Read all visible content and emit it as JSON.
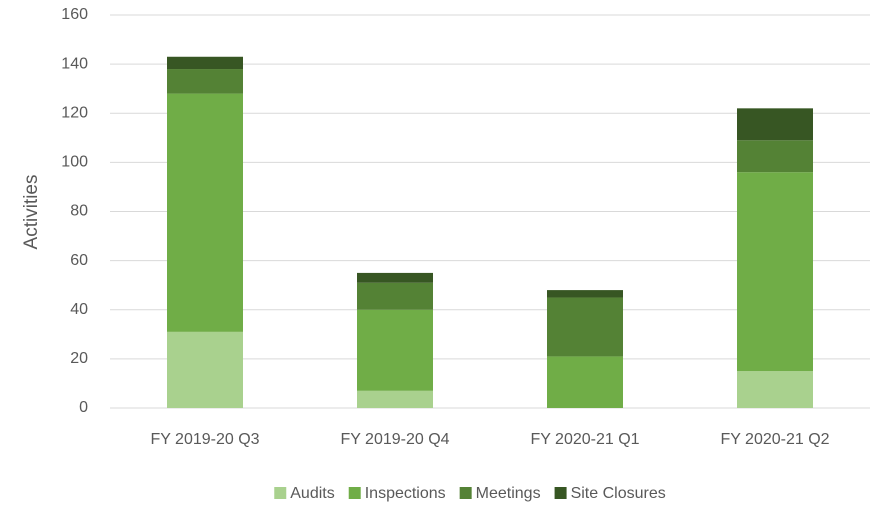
{
  "chart_data": {
    "type": "stacked-bar",
    "y_label": "Activities",
    "categories": [
      "FY 2019-20 Q3",
      "FY 2019-20 Q4",
      "FY 2020-21 Q1",
      "FY 2020-21 Q2"
    ],
    "series": [
      {
        "name": "Audits",
        "color": "#a9d18e",
        "values": [
          31,
          7,
          0,
          15
        ]
      },
      {
        "name": "Inspections",
        "color": "#70ad47",
        "values": [
          97,
          33,
          21,
          81
        ]
      },
      {
        "name": "Meetings",
        "color": "#548235",
        "values": [
          10,
          11,
          24,
          13
        ]
      },
      {
        "name": "Site Closures",
        "color": "#375623",
        "values": [
          5,
          4,
          3,
          13
        ]
      }
    ],
    "ylim": [
      0,
      160
    ],
    "yticks": [
      0,
      20,
      40,
      60,
      80,
      100,
      120,
      140,
      160
    ],
    "grid": true,
    "legend": "bottom"
  }
}
